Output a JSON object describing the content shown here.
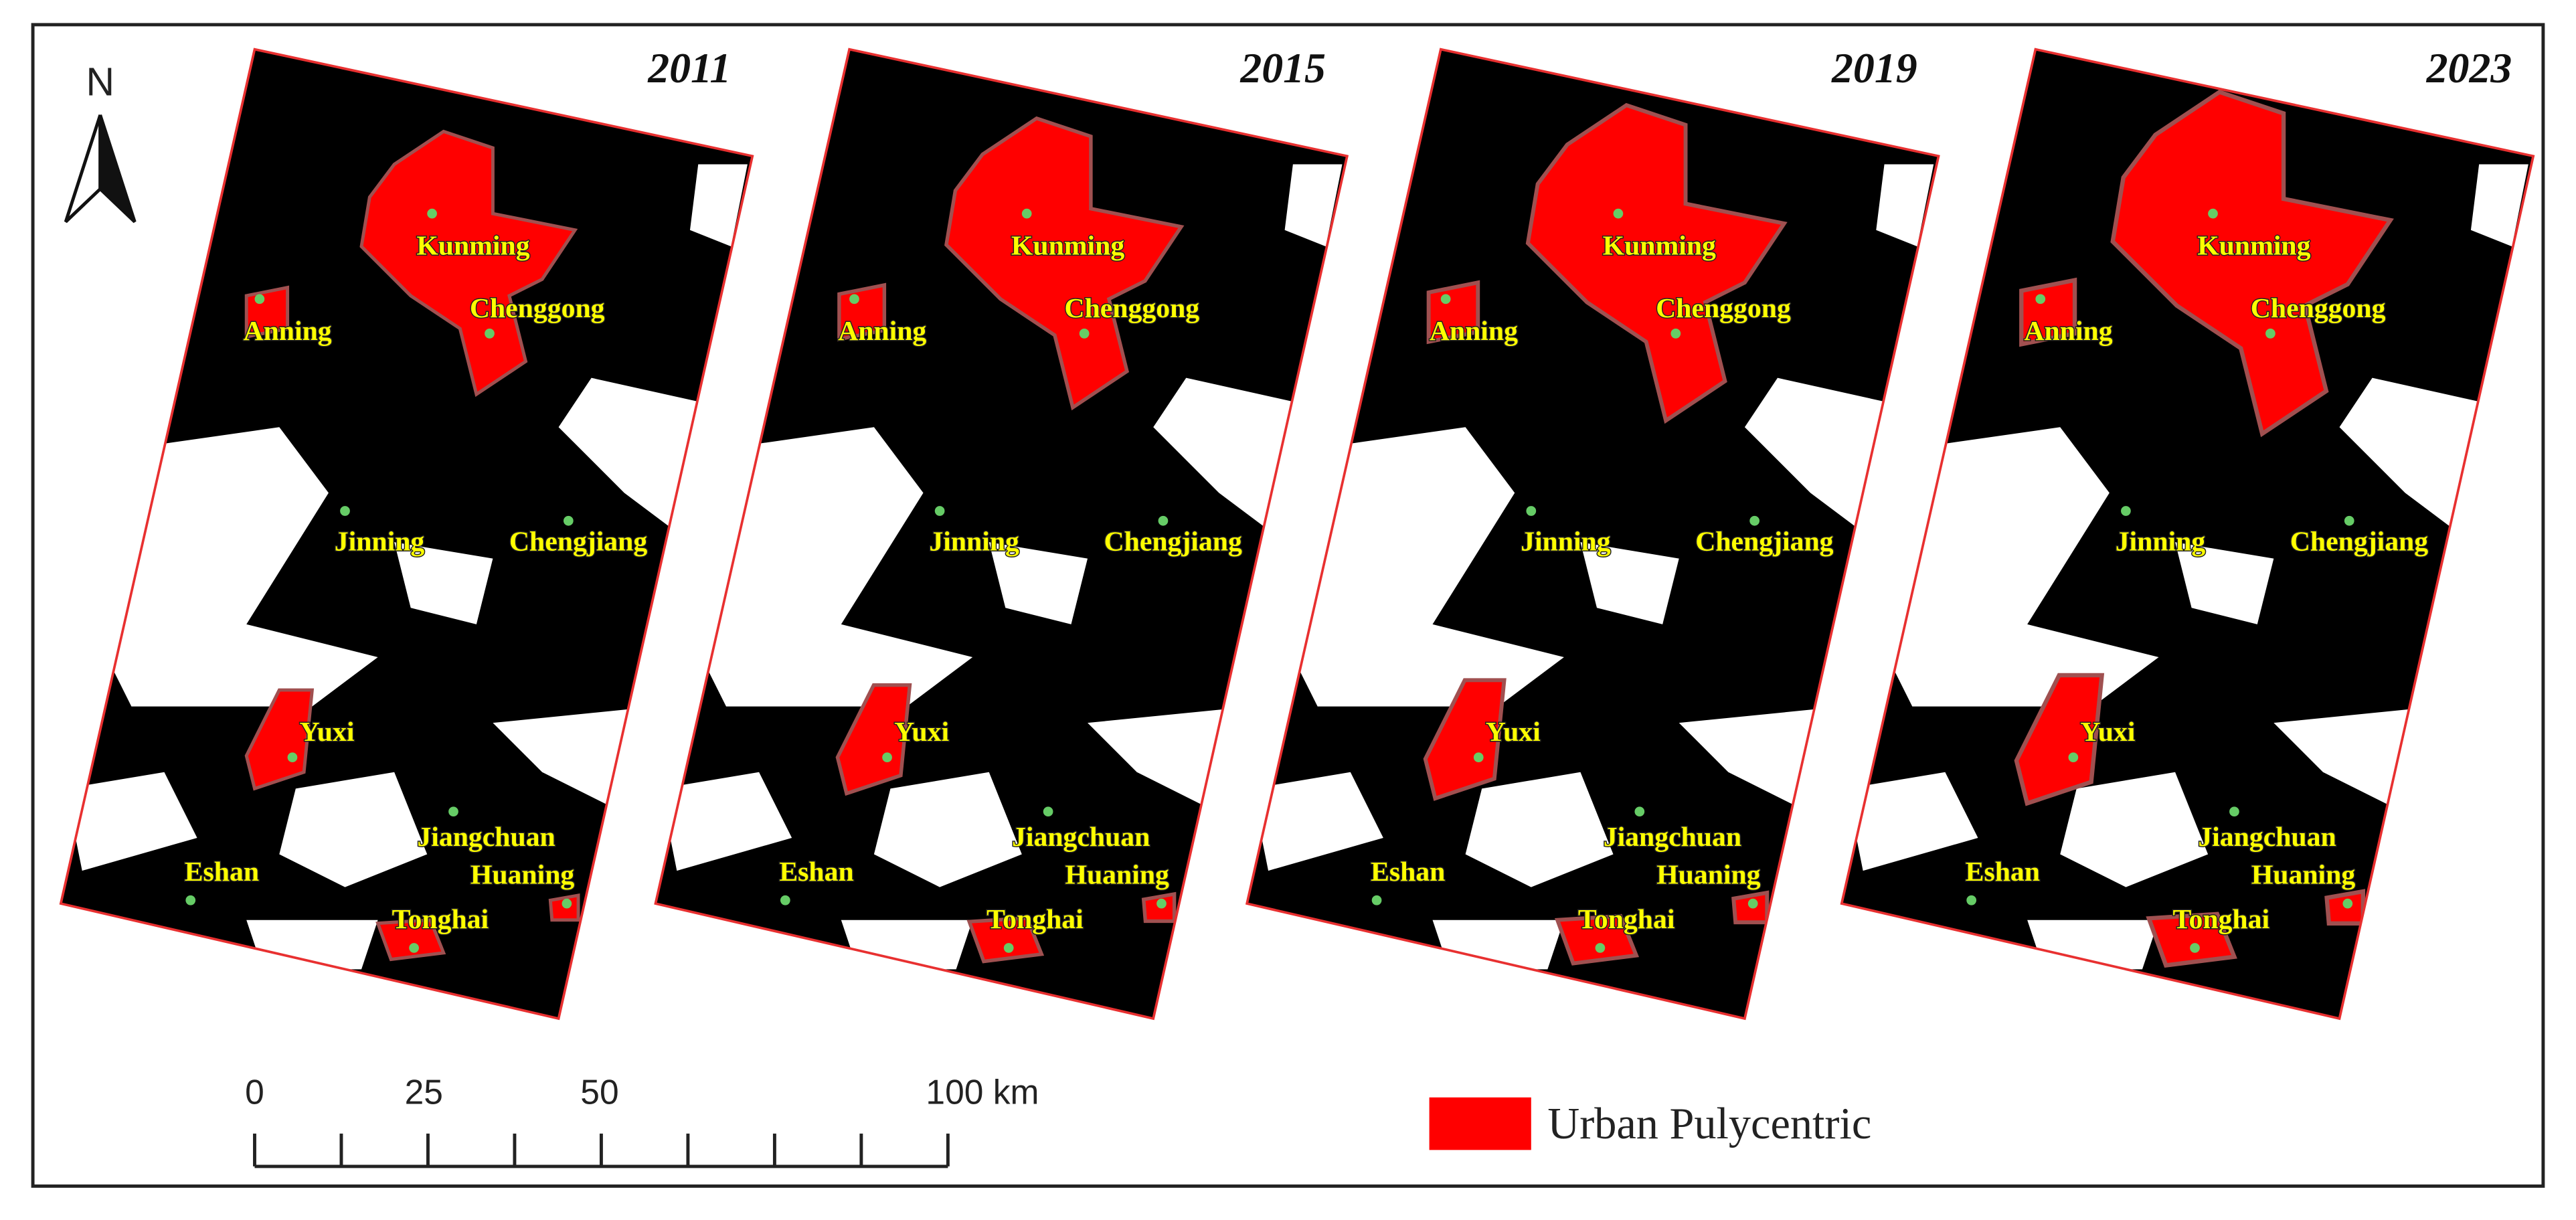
{
  "north": "N",
  "panels": [
    {
      "year": "2011",
      "cities": [
        "Kunming",
        "Chenggong",
        "Anning",
        "Jinning",
        "Chengjiang",
        "Yuxi",
        "Jiangchuan",
        "Eshan",
        "Huaning",
        "Tonghai"
      ]
    },
    {
      "year": "2015",
      "cities": [
        "Kunming",
        "Chenggong",
        "Anning",
        "Jinning",
        "Chengjiang",
        "Yuxi",
        "Jiangchuan",
        "Eshan",
        "Huaning",
        "Tonghai"
      ]
    },
    {
      "year": "2019",
      "cities": [
        "Kunming",
        "Chenggong",
        "Anning",
        "Jinning",
        "Chengjiang",
        "Yuxi",
        "Jiangchuan",
        "Eshan",
        "Huaning",
        "Tonghai"
      ]
    },
    {
      "year": "2023",
      "cities": [
        "Kunming",
        "Chenggong",
        "Anning",
        "Jinning",
        "Chengjiang",
        "Yuxi",
        "Jiangchuan",
        "Eshan",
        "Huaning",
        "Tonghai"
      ]
    }
  ],
  "scale_bar": {
    "labels": [
      "0",
      "25",
      "50",
      "100 km"
    ]
  },
  "legend": {
    "label": "Urban Pulycentric"
  }
}
